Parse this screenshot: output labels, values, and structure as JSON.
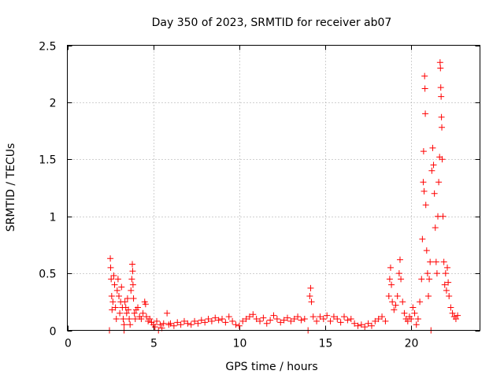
{
  "chart_data": {
    "type": "scatter",
    "title": "Day 350 of 2023, SRMTID for receiver ab07",
    "xlabel": "GPS time / hours",
    "ylabel": "SRMTID / TECUs",
    "xlim": [
      0,
      24
    ],
    "ylim": [
      0,
      2.5
    ],
    "xticks": [
      0,
      5,
      10,
      15,
      20
    ],
    "xtick_labels": [
      "0",
      "5",
      "10",
      "15",
      "20"
    ],
    "yticks": [
      0,
      0.5,
      1,
      1.5,
      2,
      2.5
    ],
    "ytick_labels": [
      "0",
      "0.5",
      "1",
      "1.5",
      "2",
      "2.5"
    ],
    "grid": true,
    "marker": "plus",
    "color": "#ff0000",
    "series": [
      {
        "name": "SRMTID",
        "points": [
          [
            2.45,
            0.0
          ],
          [
            2.5,
            0.63
          ],
          [
            2.52,
            0.55
          ],
          [
            2.55,
            0.45
          ],
          [
            2.58,
            0.3
          ],
          [
            2.6,
            0.18
          ],
          [
            2.65,
            0.25
          ],
          [
            2.7,
            0.48
          ],
          [
            2.75,
            0.4
          ],
          [
            2.8,
            0.2
          ],
          [
            2.85,
            0.1
          ],
          [
            2.9,
            0.35
          ],
          [
            2.95,
            0.45
          ],
          [
            3.0,
            0.3
          ],
          [
            3.05,
            0.15
          ],
          [
            3.1,
            0.25
          ],
          [
            3.15,
            0.38
          ],
          [
            3.2,
            0.2
          ],
          [
            3.25,
            0.1
          ],
          [
            3.3,
            0.05
          ],
          [
            3.3,
            0.0
          ],
          [
            3.35,
            0.25
          ],
          [
            3.4,
            0.2
          ],
          [
            3.45,
            0.15
          ],
          [
            3.5,
            0.28
          ],
          [
            3.55,
            0.18
          ],
          [
            3.6,
            0.1
          ],
          [
            3.65,
            0.05
          ],
          [
            3.7,
            0.35
          ],
          [
            3.75,
            0.45
          ],
          [
            3.78,
            0.58
          ],
          [
            3.8,
            0.52
          ],
          [
            3.82,
            0.4
          ],
          [
            3.85,
            0.28
          ],
          [
            3.9,
            0.15
          ],
          [
            3.95,
            0.1
          ],
          [
            4.0,
            0.18
          ],
          [
            4.1,
            0.2
          ],
          [
            4.2,
            0.12
          ],
          [
            4.3,
            0.1
          ],
          [
            4.4,
            0.15
          ],
          [
            4.5,
            0.25
          ],
          [
            4.55,
            0.23
          ],
          [
            4.6,
            0.12
          ],
          [
            4.7,
            0.08
          ],
          [
            4.8,
            0.1
          ],
          [
            4.9,
            0.07
          ],
          [
            5.0,
            0.05
          ],
          [
            5.1,
            0.03
          ],
          [
            5.2,
            0.08
          ],
          [
            5.3,
            0.0
          ],
          [
            5.4,
            0.05
          ],
          [
            5.5,
            0.02
          ],
          [
            5.6,
            0.06
          ],
          [
            5.8,
            0.15
          ],
          [
            5.9,
            0.05
          ],
          [
            6.0,
            0.06
          ],
          [
            6.2,
            0.04
          ],
          [
            6.4,
            0.07
          ],
          [
            6.6,
            0.05
          ],
          [
            6.8,
            0.08
          ],
          [
            7.0,
            0.06
          ],
          [
            7.2,
            0.05
          ],
          [
            7.4,
            0.08
          ],
          [
            7.6,
            0.06
          ],
          [
            7.8,
            0.09
          ],
          [
            8.0,
            0.07
          ],
          [
            8.2,
            0.1
          ],
          [
            8.4,
            0.08
          ],
          [
            8.6,
            0.11
          ],
          [
            8.8,
            0.09
          ],
          [
            9.0,
            0.1
          ],
          [
            9.2,
            0.07
          ],
          [
            9.4,
            0.12
          ],
          [
            9.6,
            0.08
          ],
          [
            9.8,
            0.05
          ],
          [
            10.0,
            0.04
          ],
          [
            10.2,
            0.08
          ],
          [
            10.4,
            0.1
          ],
          [
            10.6,
            0.12
          ],
          [
            10.8,
            0.14
          ],
          [
            11.0,
            0.1
          ],
          [
            11.2,
            0.08
          ],
          [
            11.4,
            0.11
          ],
          [
            11.6,
            0.06
          ],
          [
            11.8,
            0.09
          ],
          [
            12.0,
            0.13
          ],
          [
            12.2,
            0.1
          ],
          [
            12.4,
            0.07
          ],
          [
            12.6,
            0.09
          ],
          [
            12.8,
            0.11
          ],
          [
            13.0,
            0.08
          ],
          [
            13.2,
            0.1
          ],
          [
            13.4,
            0.12
          ],
          [
            13.6,
            0.09
          ],
          [
            13.8,
            0.1
          ],
          [
            14.0,
            0.0
          ],
          [
            14.1,
            0.3
          ],
          [
            14.15,
            0.37
          ],
          [
            14.2,
            0.25
          ],
          [
            14.3,
            0.12
          ],
          [
            14.5,
            0.08
          ],
          [
            14.7,
            0.12
          ],
          [
            14.9,
            0.1
          ],
          [
            15.1,
            0.13
          ],
          [
            15.3,
            0.08
          ],
          [
            15.5,
            0.12
          ],
          [
            15.7,
            0.1
          ],
          [
            15.9,
            0.07
          ],
          [
            16.1,
            0.12
          ],
          [
            16.3,
            0.09
          ],
          [
            16.5,
            0.1
          ],
          [
            16.7,
            0.06
          ],
          [
            16.9,
            0.04
          ],
          [
            17.1,
            0.05
          ],
          [
            17.3,
            0.03
          ],
          [
            17.5,
            0.06
          ],
          [
            17.7,
            0.04
          ],
          [
            17.9,
            0.08
          ],
          [
            18.1,
            0.1
          ],
          [
            18.3,
            0.12
          ],
          [
            18.5,
            0.08
          ],
          [
            18.7,
            0.3
          ],
          [
            18.75,
            0.45
          ],
          [
            18.8,
            0.55
          ],
          [
            18.85,
            0.4
          ],
          [
            18.9,
            0.25
          ],
          [
            19.0,
            0.18
          ],
          [
            19.1,
            0.22
          ],
          [
            19.2,
            0.3
          ],
          [
            19.3,
            0.5
          ],
          [
            19.35,
            0.62
          ],
          [
            19.4,
            0.45
          ],
          [
            19.5,
            0.25
          ],
          [
            19.6,
            0.15
          ],
          [
            19.7,
            0.1
          ],
          [
            19.8,
            0.08
          ],
          [
            19.9,
            0.12
          ],
          [
            20.0,
            0.1
          ],
          [
            20.1,
            0.2
          ],
          [
            20.2,
            0.15
          ],
          [
            20.3,
            0.05
          ],
          [
            20.4,
            0.1
          ],
          [
            20.5,
            0.25
          ],
          [
            20.6,
            0.45
          ],
          [
            20.65,
            0.8
          ],
          [
            20.7,
            1.3
          ],
          [
            20.72,
            1.57
          ],
          [
            20.75,
            1.22
          ],
          [
            20.78,
            2.23
          ],
          [
            20.8,
            2.12
          ],
          [
            20.82,
            1.9
          ],
          [
            20.85,
            1.1
          ],
          [
            20.9,
            0.7
          ],
          [
            20.95,
            0.5
          ],
          [
            21.0,
            0.3
          ],
          [
            21.05,
            0.45
          ],
          [
            21.1,
            0.6
          ],
          [
            21.15,
            0.0
          ],
          [
            21.2,
            1.4
          ],
          [
            21.25,
            1.6
          ],
          [
            21.3,
            1.45
          ],
          [
            21.35,
            1.2
          ],
          [
            21.4,
            0.9
          ],
          [
            21.45,
            0.6
          ],
          [
            21.5,
            0.5
          ],
          [
            21.55,
            1.0
          ],
          [
            21.6,
            1.3
          ],
          [
            21.65,
            1.52
          ],
          [
            21.68,
            2.35
          ],
          [
            21.7,
            2.3
          ],
          [
            21.72,
            2.13
          ],
          [
            21.74,
            2.05
          ],
          [
            21.76,
            1.87
          ],
          [
            21.78,
            1.78
          ],
          [
            21.8,
            1.5
          ],
          [
            21.85,
            1.0
          ],
          [
            21.9,
            0.6
          ],
          [
            21.95,
            0.4
          ],
          [
            22.0,
            0.5
          ],
          [
            22.05,
            0.35
          ],
          [
            22.1,
            0.55
          ],
          [
            22.15,
            0.42
          ],
          [
            22.2,
            0.3
          ],
          [
            22.3,
            0.2
          ],
          [
            22.4,
            0.15
          ],
          [
            22.5,
            0.12
          ],
          [
            22.6,
            0.1
          ],
          [
            22.7,
            0.13
          ]
        ]
      }
    ]
  }
}
